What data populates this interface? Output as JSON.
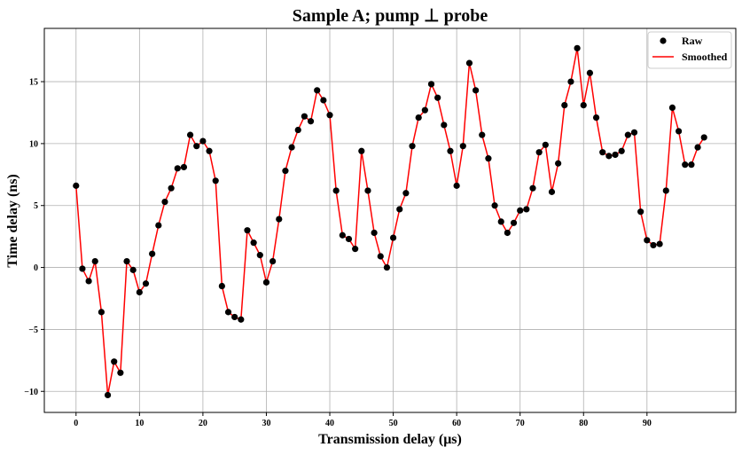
{
  "chart_data": {
    "type": "line",
    "title": "Sample A; pump ⊥ probe",
    "xlabel": "Transmission delay (μs)",
    "ylabel": "Time delay (ns)",
    "xlim": [
      -5,
      104
    ],
    "ylim": [
      -11.7,
      19.3
    ],
    "xticks": [
      0,
      10,
      20,
      30,
      40,
      50,
      60,
      70,
      80,
      90
    ],
    "yticks": [
      -10,
      -5,
      0,
      5,
      10,
      15
    ],
    "ytick_labels": [
      "−10",
      "−5",
      "0",
      "5",
      "10",
      "15"
    ],
    "grid": true,
    "legend_position": "top-right",
    "x": [
      0,
      1,
      2,
      3,
      4,
      5,
      6,
      7,
      8,
      9,
      10,
      11,
      12,
      13,
      14,
      15,
      16,
      17,
      18,
      19,
      20,
      21,
      22,
      23,
      24,
      25,
      26,
      27,
      28,
      29,
      30,
      31,
      32,
      33,
      34,
      35,
      36,
      37,
      38,
      39,
      40,
      41,
      42,
      43,
      44,
      45,
      46,
      47,
      48,
      49,
      50,
      51,
      52,
      53,
      54,
      55,
      56,
      57,
      58,
      59,
      60,
      61,
      62,
      63,
      64,
      65,
      66,
      67,
      68,
      69,
      70,
      71,
      72,
      73,
      74,
      75,
      76,
      77,
      78,
      79,
      80,
      81,
      82,
      83,
      84,
      85,
      86,
      87,
      88,
      89,
      90,
      91,
      92,
      93,
      94,
      95,
      96,
      97,
      98,
      99
    ],
    "series": [
      {
        "name": "Raw",
        "style": "scatter",
        "color": "#000000",
        "values": [
          6.6,
          -0.1,
          -1.1,
          0.5,
          -3.6,
          -10.3,
          -7.6,
          -8.5,
          0.5,
          -0.2,
          -2.0,
          -1.3,
          1.1,
          3.4,
          5.3,
          6.4,
          8.0,
          8.1,
          10.7,
          9.8,
          10.2,
          9.4,
          7.0,
          -1.5,
          -3.6,
          -4.0,
          -4.2,
          3.0,
          2.0,
          1.0,
          -1.2,
          0.5,
          3.9,
          7.8,
          9.7,
          11.1,
          12.2,
          11.8,
          14.3,
          13.5,
          12.3,
          6.2,
          2.6,
          2.3,
          1.5,
          9.4,
          6.2,
          2.8,
          0.9,
          0.0,
          2.4,
          4.7,
          6.0,
          9.8,
          12.1,
          12.7,
          14.8,
          13.7,
          11.5,
          9.4,
          6.6,
          9.8,
          16.5,
          14.3,
          10.7,
          8.8,
          5.0,
          3.7,
          2.8,
          3.6,
          4.6,
          4.7,
          6.4,
          9.3,
          9.9,
          6.1,
          8.4,
          13.1,
          15.0,
          17.7,
          13.1,
          15.7,
          12.1,
          9.3,
          9.0,
          9.1,
          9.4,
          10.7,
          10.9,
          4.5,
          2.2,
          1.8,
          1.9,
          6.2,
          12.9,
          11.0,
          8.3,
          8.3,
          9.7,
          10.5
        ]
      },
      {
        "name": "Smoothed",
        "style": "line",
        "color": "#ff0000",
        "values": [
          6.6,
          -0.1,
          -1.1,
          0.5,
          -3.6,
          -10.3,
          -7.6,
          -8.5,
          0.5,
          -0.2,
          -2.0,
          -1.3,
          1.1,
          3.4,
          5.3,
          6.4,
          8.0,
          8.1,
          10.7,
          9.8,
          10.2,
          9.4,
          7.0,
          -1.5,
          -3.6,
          -4.0,
          -4.2,
          3.0,
          2.0,
          1.0,
          -1.2,
          0.5,
          3.9,
          7.8,
          9.7,
          11.1,
          12.2,
          11.8,
          14.3,
          13.5,
          12.3,
          6.2,
          2.6,
          2.3,
          1.5,
          9.4,
          6.2,
          2.8,
          0.9,
          0.0,
          2.4,
          4.7,
          6.0,
          9.8,
          12.1,
          12.7,
          14.8,
          13.7,
          11.5,
          9.4,
          6.6,
          9.8,
          16.5,
          14.3,
          10.7,
          8.8,
          5.0,
          3.7,
          2.8,
          3.6,
          4.6,
          4.7,
          6.4,
          9.3,
          9.9,
          6.1,
          8.4,
          13.1,
          15.0,
          17.7,
          13.1,
          15.7,
          12.1,
          9.3,
          9.0,
          9.1,
          9.4,
          10.7,
          10.9,
          4.5,
          2.2,
          1.8,
          1.9,
          6.2,
          12.9,
          11.0,
          8.3,
          8.3,
          9.7,
          10.5
        ]
      }
    ]
  }
}
